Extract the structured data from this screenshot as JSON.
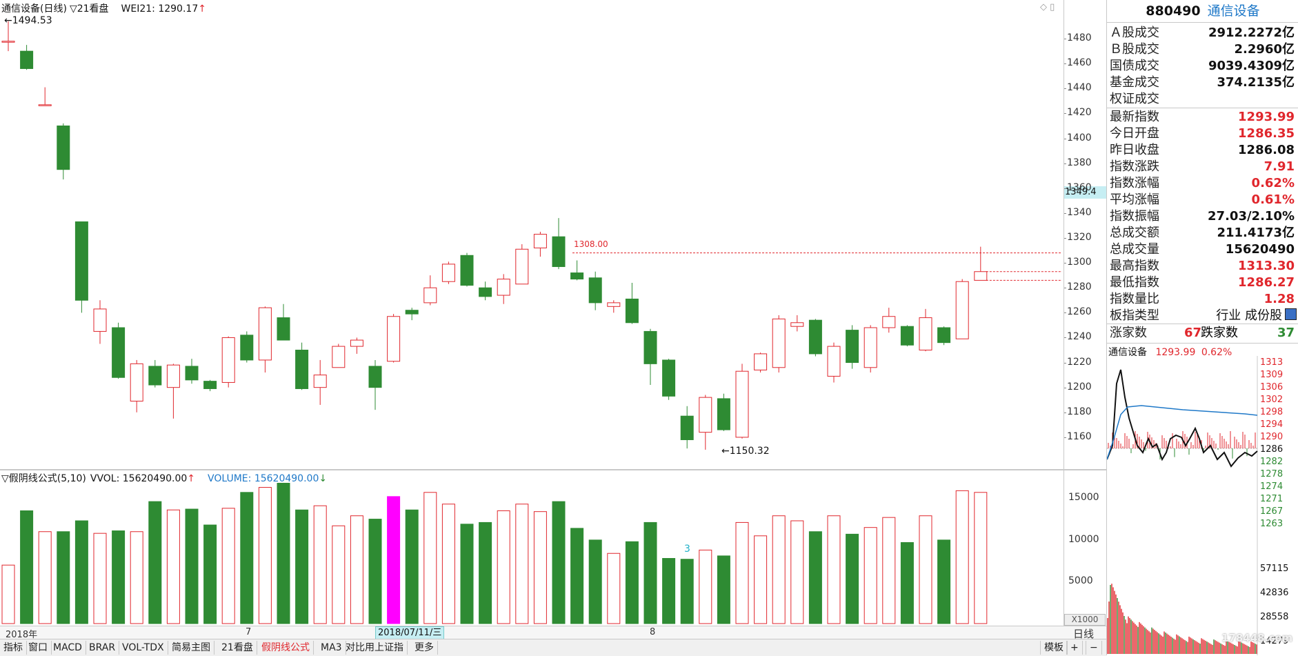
{
  "header": {
    "title": "通信设备(日线)",
    "period_menu": "▽21看盘",
    "indicator": "WEI21: 1290.17",
    "indicator_arrow": "↑"
  },
  "vol_header": {
    "title": "▽假阴线公式(5,10)",
    "vvol": "VVOL: 15620490.00",
    "vvol_arrow": "↑",
    "volume": "VOLUME: 15620490.00",
    "volume_arrow": "↓"
  },
  "annotations": {
    "high_label": "1494.53",
    "low_label": "←1150.32",
    "line_label": "1308.00",
    "vol_mark": "3",
    "current_price_tag": "1349.4",
    "vol_unit": "X1000"
  },
  "xaxis": {
    "labels": [
      {
        "text": "2018年"
      },
      {
        "text": "7"
      },
      {
        "text": "8"
      }
    ],
    "cursor_date": "2018/07/11/三",
    "period": "日线"
  },
  "chart_data": {
    "type": "candlestick",
    "ylim": [
      1140,
      1500
    ],
    "yticks": [
      1160,
      1180,
      1200,
      1220,
      1240,
      1260,
      1280,
      1300,
      1320,
      1340,
      1360,
      1380,
      1400,
      1420,
      1440,
      1460,
      1480
    ],
    "candles": [
      {
        "o": 1478,
        "c": 1478,
        "h": 1494,
        "l": 1470
      },
      {
        "o": 1470,
        "c": 1456,
        "h": 1475,
        "l": 1455
      },
      {
        "o": 1427,
        "c": 1427,
        "h": 1441,
        "l": 1426
      },
      {
        "o": 1410,
        "c": 1375,
        "h": 1412,
        "l": 1367
      },
      {
        "o": 1333,
        "c": 1270,
        "h": 1333,
        "l": 1260
      },
      {
        "o": 1245,
        "c": 1263,
        "h": 1270,
        "l": 1235
      },
      {
        "o": 1248,
        "c": 1208,
        "h": 1252,
        "l": 1207
      },
      {
        "o": 1189,
        "c": 1219,
        "h": 1222,
        "l": 1180
      },
      {
        "o": 1217,
        "c": 1202,
        "h": 1222,
        "l": 1200
      },
      {
        "o": 1200,
        "c": 1218,
        "h": 1219,
        "l": 1175
      },
      {
        "o": 1217,
        "c": 1206,
        "h": 1223,
        "l": 1203
      },
      {
        "o": 1205,
        "c": 1199,
        "h": 1206,
        "l": 1197
      },
      {
        "o": 1204,
        "c": 1240,
        "h": 1241,
        "l": 1200
      },
      {
        "o": 1242,
        "c": 1222,
        "h": 1245,
        "l": 1220
      },
      {
        "o": 1222,
        "c": 1264,
        "h": 1265,
        "l": 1212
      },
      {
        "o": 1256,
        "c": 1238,
        "h": 1267,
        "l": 1238
      },
      {
        "o": 1230,
        "c": 1199,
        "h": 1236,
        "l": 1198
      },
      {
        "o": 1200,
        "c": 1210,
        "h": 1222,
        "l": 1186
      },
      {
        "o": 1216,
        "c": 1233,
        "h": 1235,
        "l": 1216
      },
      {
        "o": 1233,
        "c": 1238,
        "h": 1240,
        "l": 1227
      },
      {
        "o": 1217,
        "c": 1200,
        "h": 1222,
        "l": 1182
      },
      {
        "o": 1221,
        "c": 1257,
        "h": 1259,
        "l": 1220
      },
      {
        "o": 1262,
        "c": 1259,
        "h": 1264,
        "l": 1254
      },
      {
        "o": 1268,
        "c": 1280,
        "h": 1290,
        "l": 1266
      },
      {
        "o": 1285,
        "c": 1299,
        "h": 1301,
        "l": 1283
      },
      {
        "o": 1306,
        "c": 1282,
        "h": 1308,
        "l": 1281
      },
      {
        "o": 1280,
        "c": 1273,
        "h": 1285,
        "l": 1270
      },
      {
        "o": 1274,
        "c": 1287,
        "h": 1291,
        "l": 1267
      },
      {
        "o": 1283,
        "c": 1311,
        "h": 1315,
        "l": 1283
      },
      {
        "o": 1312,
        "c": 1323,
        "h": 1325,
        "l": 1305
      },
      {
        "o": 1321,
        "c": 1297,
        "h": 1336,
        "l": 1295
      },
      {
        "o": 1292,
        "c": 1287,
        "h": 1302,
        "l": 1286
      },
      {
        "o": 1288,
        "c": 1268,
        "h": 1293,
        "l": 1262
      },
      {
        "o": 1265,
        "c": 1268,
        "h": 1270,
        "l": 1260
      },
      {
        "o": 1271,
        "c": 1252,
        "h": 1284,
        "l": 1251
      },
      {
        "o": 1245,
        "c": 1219,
        "h": 1247,
        "l": 1202
      },
      {
        "o": 1222,
        "c": 1193,
        "h": 1223,
        "l": 1190
      },
      {
        "o": 1177,
        "c": 1158,
        "h": 1185,
        "l": 1151
      },
      {
        "o": 1164,
        "c": 1192,
        "h": 1194,
        "l": 1150
      },
      {
        "o": 1191,
        "c": 1166,
        "h": 1195,
        "l": 1165
      },
      {
        "o": 1160,
        "c": 1213,
        "h": 1219,
        "l": 1159
      },
      {
        "o": 1214,
        "c": 1227,
        "h": 1228,
        "l": 1212
      },
      {
        "o": 1216,
        "c": 1255,
        "h": 1258,
        "l": 1212
      },
      {
        "o": 1249,
        "c": 1252,
        "h": 1258,
        "l": 1245
      },
      {
        "o": 1254,
        "c": 1227,
        "h": 1255,
        "l": 1225
      },
      {
        "o": 1209,
        "c": 1233,
        "h": 1236,
        "l": 1204
      },
      {
        "o": 1246,
        "c": 1220,
        "h": 1250,
        "l": 1215
      },
      {
        "o": 1216,
        "c": 1248,
        "h": 1250,
        "l": 1212
      },
      {
        "o": 1248,
        "c": 1257,
        "h": 1264,
        "l": 1244
      },
      {
        "o": 1249,
        "c": 1234,
        "h": 1250,
        "l": 1233
      },
      {
        "o": 1230,
        "c": 1256,
        "h": 1263,
        "l": 1229
      },
      {
        "o": 1248,
        "c": 1236,
        "h": 1249,
        "l": 1234
      },
      {
        "o": 1239,
        "c": 1285,
        "h": 1287,
        "l": 1239
      },
      {
        "o": 1286,
        "c": 1293,
        "h": 1313,
        "l": 1286
      }
    ],
    "volume": {
      "ylabels": [
        15000,
        10000,
        5000
      ],
      "ymax": 17500,
      "bars": [
        7000,
        13500,
        11000,
        11000,
        12300,
        10800,
        11100,
        11000,
        14600,
        13600,
        13700,
        11800,
        13800,
        15700,
        16300,
        16800,
        13600,
        14100,
        11700,
        12900,
        12500,
        15200,
        13600,
        15700,
        14300,
        11900,
        12100,
        13500,
        14300,
        13400,
        14600,
        11400,
        10000,
        8400,
        9800,
        12100,
        7800,
        7700,
        8800,
        8100,
        12100,
        10500,
        12900,
        12300,
        11000,
        12900,
        10700,
        11500,
        12700,
        9700,
        12900,
        10000,
        15900,
        15700
      ]
    }
  },
  "quote": {
    "code": "880490",
    "name": "通信设备",
    "rows1": [
      {
        "label": "Ａ股成交",
        "value": "2912.2272亿",
        "color": "#111111"
      },
      {
        "label": "Ｂ股成交",
        "value": "2.2960亿",
        "color": "#111111"
      },
      {
        "label": "国债成交",
        "value": "9039.4309亿",
        "color": "#111111"
      },
      {
        "label": "基金成交",
        "value": "374.2135亿",
        "color": "#111111"
      },
      {
        "label": "权证成交",
        "value": "",
        "color": "#111111"
      }
    ],
    "rows2": [
      {
        "label": "最新指数",
        "value": "1293.99",
        "color": "#e0262c"
      },
      {
        "label": "今日开盘",
        "value": "1286.35",
        "color": "#e0262c"
      },
      {
        "label": "昨日收盘",
        "value": "1286.08",
        "color": "#111111"
      },
      {
        "label": "指数涨跌",
        "value": "7.91",
        "color": "#e0262c"
      },
      {
        "label": "指数涨幅",
        "value": "0.62%",
        "color": "#e0262c"
      },
      {
        "label": "平均涨幅",
        "value": "0.61%",
        "color": "#e0262c"
      },
      {
        "label": "指数振幅",
        "value": "27.03/2.10%",
        "color": "#111111"
      },
      {
        "label": "总成交额",
        "value": "211.4173亿",
        "color": "#111111"
      },
      {
        "label": "总成交量",
        "value": "15620490",
        "color": "#111111"
      },
      {
        "label": "最高指数",
        "value": "1313.30",
        "color": "#e0262c"
      },
      {
        "label": "最低指数",
        "value": "1286.27",
        "color": "#e0262c"
      },
      {
        "label": "指数量比",
        "value": "1.28",
        "color": "#e0262c"
      },
      {
        "label": "板指类型",
        "value": "行业 成份股",
        "color": "#111111"
      }
    ],
    "up_label": "涨家数",
    "up_value": "67",
    "down_label": "跌家数",
    "down_value": "37"
  },
  "mini_chart": {
    "title": "通信设备",
    "price": "1293.99",
    "pct": "0.62%",
    "yticks": [
      "1313",
      "1309",
      "1306",
      "1302",
      "1298",
      "1294",
      "1290",
      "1286",
      "1282",
      "1278",
      "1274",
      "1271",
      "1267",
      "1263"
    ],
    "vol_ticks": [
      "57115",
      "42836",
      "28558",
      "14279"
    ],
    "watermark": "178448.com"
  },
  "tabs": [
    {
      "label": "指标"
    },
    {
      "label": "窗口"
    },
    {
      "label": "MACD"
    },
    {
      "label": "BRAR"
    },
    {
      "label": "VOL-TDX"
    },
    {
      "label": "简易主图"
    },
    {
      "label": "21看盘"
    },
    {
      "label": "假阴线公式"
    },
    {
      "label": "MA3"
    },
    {
      "label": "对比用上证指"
    },
    {
      "label": "更多"
    }
  ],
  "active_tab": "假阴线公式",
  "right_tabs": [
    "模板",
    "+",
    "−"
  ],
  "colors": {
    "up": "#e0262c",
    "down": "#2e8b33",
    "highlight": "#ff00ff",
    "accent": "#1e78c8"
  }
}
